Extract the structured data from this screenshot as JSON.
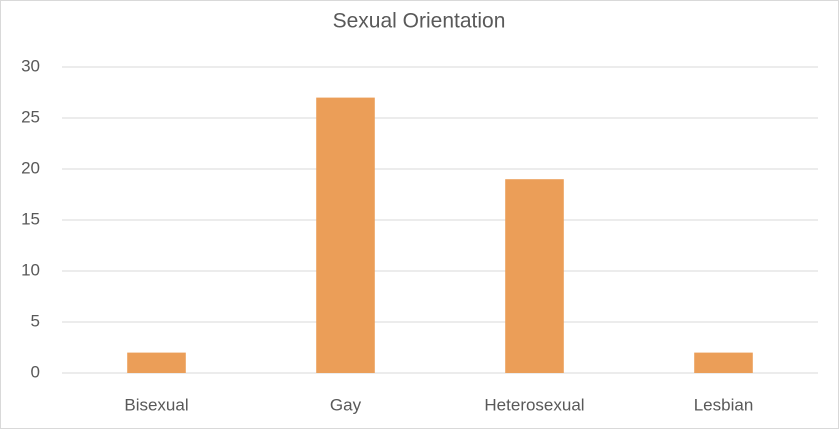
{
  "chart_data": {
    "type": "bar",
    "title": "Sexual Orientation",
    "categories": [
      "Bisexual",
      "Gay",
      "Heterosexual",
      "Lesbian"
    ],
    "values": [
      2,
      27,
      19,
      2
    ],
    "color": "#eb9e58",
    "ylim": [
      0,
      30
    ],
    "yticks": [
      0,
      5,
      10,
      15,
      20,
      25,
      30
    ],
    "grid": true
  }
}
